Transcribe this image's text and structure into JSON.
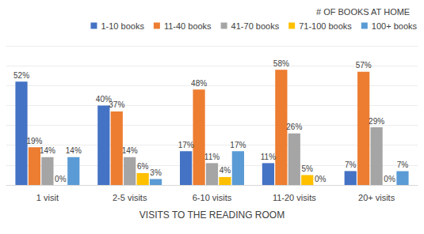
{
  "chart_data": {
    "type": "bar",
    "legend_title": "# OF BOOKS AT HOME",
    "x_label": "VISITS TO THE READING ROOM",
    "categories": [
      "1 visit",
      "2-5 visits",
      "6-10 visits",
      "11-20 visits",
      "20+ visits"
    ],
    "series": [
      {
        "name": "1-10 books",
        "color": "#4472c4",
        "values": [
          52,
          40,
          17,
          11,
          7
        ],
        "value_labels": [
          "52%",
          "40%",
          "17%",
          "11%",
          "7%"
        ]
      },
      {
        "name": "11-40 books",
        "color": "#ed7d31",
        "values": [
          19,
          37,
          48,
          58,
          57
        ],
        "value_labels": [
          "19%",
          "37%",
          "48%",
          "58%",
          "57%"
        ]
      },
      {
        "name": "41-70 books",
        "color": "#a5a5a5",
        "values": [
          14,
          14,
          11,
          26,
          29
        ],
        "value_labels": [
          "14%",
          "14%",
          "11%",
          "26%",
          "29%"
        ]
      },
      {
        "name": "71-100 books",
        "color": "#ffc000",
        "values": [
          0,
          6,
          4,
          5,
          0
        ],
        "value_labels": [
          "0%",
          "6%",
          "4%",
          "5%",
          "0%"
        ]
      },
      {
        "name": "100+ books",
        "color": "#5b9bd5",
        "values": [
          14,
          3,
          17,
          0,
          7
        ],
        "value_labels": [
          "14%",
          "3%",
          "17%",
          "0%",
          "7%"
        ]
      }
    ],
    "ylim": [
      0,
      70
    ],
    "yticks": [
      0,
      10,
      20,
      30,
      40,
      50,
      60,
      70
    ],
    "grid": true,
    "legend": "top",
    "data_labels": true,
    "tick_labels": "x"
  }
}
